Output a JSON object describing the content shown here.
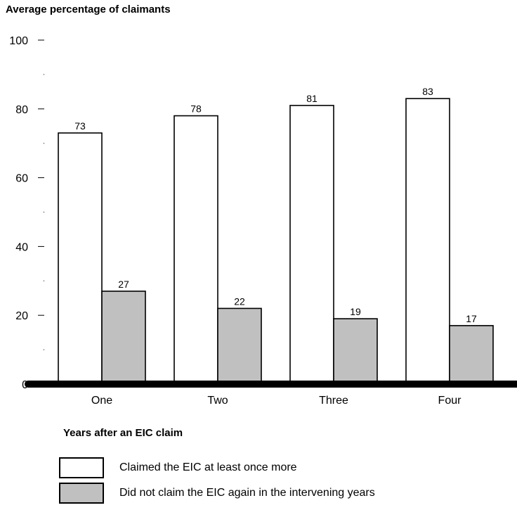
{
  "chart_data": {
    "type": "bar",
    "ylabel": "Average percentage of claimants",
    "xlabel": "Years after an EIC claim",
    "categories": [
      "One",
      "Two",
      "Three",
      "Four"
    ],
    "series": [
      {
        "name": "Claimed the EIC at least once more",
        "values": [
          73,
          78,
          81,
          83
        ],
        "color": "#ffffff"
      },
      {
        "name": "Did not claim the EIC again in the intervening years",
        "values": [
          27,
          22,
          19,
          17
        ],
        "color": "#c0c0c0"
      }
    ],
    "ylim": [
      0,
      100
    ],
    "yticks": [
      "0",
      "20",
      "40",
      "60",
      "80",
      "100"
    ],
    "grid": false,
    "legend_position": "bottom-left"
  }
}
